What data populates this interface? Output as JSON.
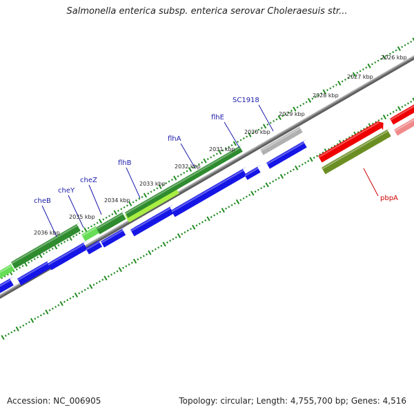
{
  "title": "Salmonella enterica subsp. enterica serovar Choleraesuis str...",
  "accession": "Accession: NC_006905",
  "topology": "Topology: circular; Length: 4,755,700 bp; Genes: 4,516",
  "colors": {
    "backbone": "#8a8a8a",
    "tick": "#1f8a1f",
    "forward_dark": "#2e8b2e",
    "forward_light": "#66dd55",
    "forward_lime": "#aaee44",
    "reverse": "#1515e6",
    "red": "#ee0000",
    "olive": "#6b8e23",
    "gray": "#b0b0b0",
    "label_blue": "#1a1aaa",
    "label_red": "#cc0000"
  },
  "kbp_labels": [
    "2026 kbp",
    "2027 kbp",
    "2028 kbp",
    "2029 kbp",
    "2030 kbp",
    "2031 kbp",
    "2032 kbp",
    "2033 kbp",
    "2034 kbp",
    "2035 kbp",
    "2036 kbp"
  ],
  "gene_labels": [
    {
      "name": "SC1918",
      "color": "label_blue"
    },
    {
      "name": "flhE",
      "color": "label_blue"
    },
    {
      "name": "flhA",
      "color": "label_blue"
    },
    {
      "name": "flhB",
      "color": "label_blue"
    },
    {
      "name": "cheZ",
      "color": "label_blue"
    },
    {
      "name": "cheY",
      "color": "label_blue"
    },
    {
      "name": "cheB",
      "color": "label_blue"
    },
    {
      "name": "pbpA",
      "color": "label_red"
    }
  ]
}
